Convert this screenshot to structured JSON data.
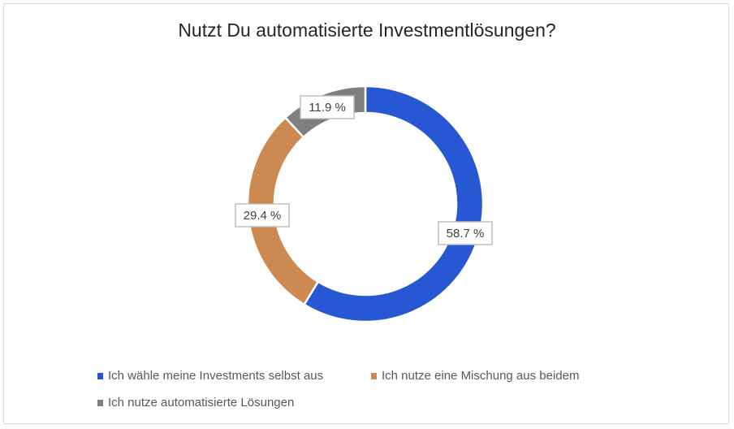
{
  "chart_data": {
    "type": "pie",
    "variant": "donut",
    "title": "Nutzt Du automatisierte Investmentlösungen?",
    "categories": [
      "Ich wähle meine Investments selbst aus",
      "Ich nutze eine Mischung aus beidem",
      "Ich nutze automatisierte Lösungen"
    ],
    "values": [
      58.7,
      29.4,
      11.9
    ],
    "data_labels": [
      "58.7 %",
      "29.4 %",
      "11.9 %"
    ],
    "colors": [
      "#2757d3",
      "#cc8a52",
      "#7f7f7f"
    ],
    "legend_position": "bottom"
  }
}
